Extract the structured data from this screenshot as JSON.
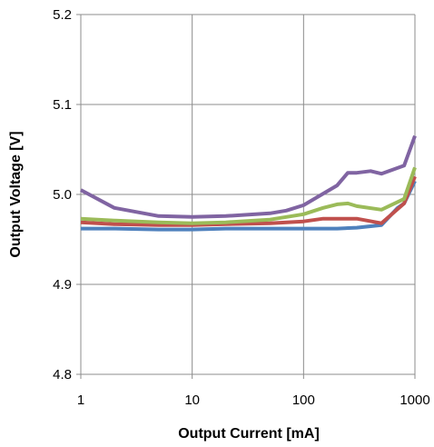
{
  "chart_data": {
    "type": "line",
    "title": "",
    "xlabel": "Output Current [mA]",
    "ylabel": "Output Voltage [V]",
    "x_scale": "log",
    "xlim": [
      1,
      1000
    ],
    "ylim": [
      4.8,
      5.2
    ],
    "grid": true,
    "x_ticks": [
      1,
      10,
      100,
      1000
    ],
    "x_tick_labels": [
      "1",
      "10",
      "100",
      "1000"
    ],
    "y_ticks": [
      4.8,
      4.9,
      5.0,
      5.1,
      5.2
    ],
    "y_tick_labels": [
      "4.8",
      "4.9",
      "5.0",
      "5.1",
      "5.2"
    ],
    "series": [
      {
        "color": "#4f81bd",
        "points": [
          [
            1,
            4.962
          ],
          [
            2,
            4.962
          ],
          [
            5,
            4.961
          ],
          [
            10,
            4.961
          ],
          [
            20,
            4.962
          ],
          [
            50,
            4.962
          ],
          [
            100,
            4.962
          ],
          [
            200,
            4.962
          ],
          [
            300,
            4.963
          ],
          [
            500,
            4.966
          ],
          [
            700,
            4.985
          ],
          [
            800,
            4.99
          ],
          [
            1000,
            5.015
          ]
        ]
      },
      {
        "color": "#c0504d",
        "points": [
          [
            1,
            4.969
          ],
          [
            2,
            4.967
          ],
          [
            5,
            4.966
          ],
          [
            10,
            4.966
          ],
          [
            20,
            4.967
          ],
          [
            50,
            4.968
          ],
          [
            100,
            4.97
          ],
          [
            150,
            4.973
          ],
          [
            200,
            4.973
          ],
          [
            300,
            4.973
          ],
          [
            500,
            4.968
          ],
          [
            800,
            4.99
          ],
          [
            1000,
            5.02
          ]
        ]
      },
      {
        "color": "#9bbb59",
        "points": [
          [
            1,
            4.973
          ],
          [
            2,
            4.971
          ],
          [
            5,
            4.969
          ],
          [
            10,
            4.968
          ],
          [
            20,
            4.969
          ],
          [
            50,
            4.972
          ],
          [
            100,
            4.978
          ],
          [
            150,
            4.985
          ],
          [
            200,
            4.989
          ],
          [
            250,
            4.99
          ],
          [
            300,
            4.987
          ],
          [
            500,
            4.983
          ],
          [
            800,
            4.995
          ],
          [
            1000,
            5.03
          ]
        ]
      },
      {
        "color": "#8064a2",
        "points": [
          [
            1,
            5.005
          ],
          [
            2,
            4.985
          ],
          [
            5,
            4.976
          ],
          [
            10,
            4.975
          ],
          [
            20,
            4.976
          ],
          [
            50,
            4.979
          ],
          [
            70,
            4.982
          ],
          [
            100,
            4.988
          ],
          [
            200,
            5.01
          ],
          [
            250,
            5.024
          ],
          [
            300,
            5.024
          ],
          [
            400,
            5.026
          ],
          [
            500,
            5.023
          ],
          [
            800,
            5.032
          ],
          [
            1000,
            5.065
          ]
        ]
      }
    ]
  }
}
